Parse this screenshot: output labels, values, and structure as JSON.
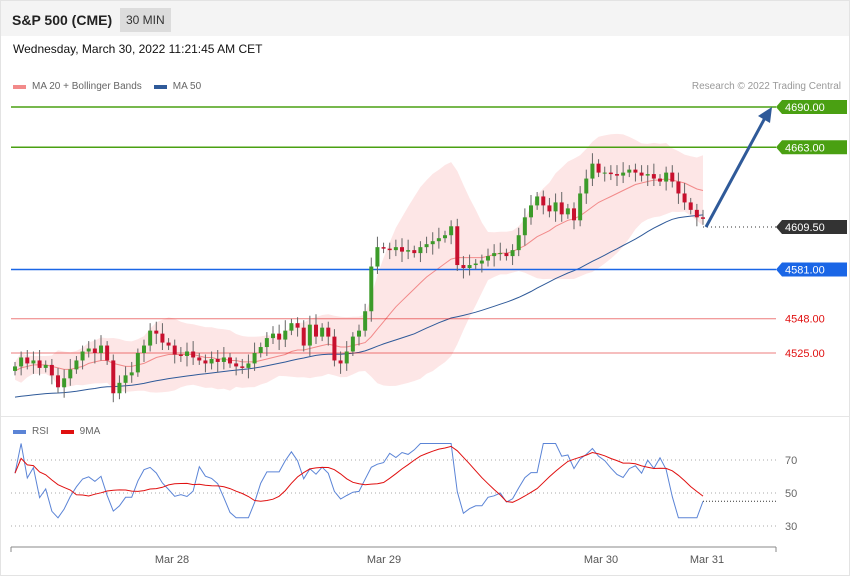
{
  "header": {
    "symbol": "S&P 500 (CME)",
    "timeframe": "30 MIN"
  },
  "datetime": "Wednesday, March 30, 2022 11:21:45 AM CET",
  "legend": {
    "ma20_label": "MA 20 + Bollinger Bands",
    "ma20_color": "#f28a8a",
    "ma50_label": "MA 50",
    "ma50_color": "#2f5a99"
  },
  "credit": "Research © 2022 Trading Central",
  "rsi_legend": {
    "rsi_label": "RSI",
    "rsi_color": "#5b84d6",
    "ma_label": "9MA",
    "ma_color": "#e01010"
  },
  "chart_data": {
    "type": "candlestick",
    "price_axis": {
      "min": 4400,
      "max": 4760
    },
    "levels": [
      {
        "label": "4690.00",
        "value": 4690.0,
        "color": "#4aa012",
        "kind": "resistance"
      },
      {
        "label": "4663.00",
        "value": 4663.0,
        "color": "#4aa012",
        "kind": "resistance"
      },
      {
        "label": "4609.50",
        "value": 4609.5,
        "color": "#333333",
        "kind": "current"
      },
      {
        "label": "4581.00",
        "value": 4581.0,
        "color": "#1a66e6",
        "kind": "pivot"
      },
      {
        "label": "4548.00",
        "value": 4548.0,
        "color": "#e01010",
        "kind": "support"
      },
      {
        "label": "4525.00",
        "value": 4525.0,
        "color": "#e01010",
        "kind": "support"
      }
    ],
    "x_labels": [
      "Mar 28",
      "Mar 29",
      "Mar 30",
      "Mar 31"
    ],
    "candles_close": [
      4516,
      4522,
      4518,
      4520,
      4515,
      4517,
      4510,
      4502,
      4508,
      4514,
      4520,
      4526,
      4528,
      4525,
      4530,
      4520,
      4498,
      4505,
      4510,
      4512,
      4525,
      4530,
      4540,
      4538,
      4532,
      4530,
      4524,
      4523,
      4526,
      4522,
      4520,
      4518,
      4521,
      4519,
      4522,
      4518,
      4516,
      4515,
      4518,
      4525,
      4529,
      4535,
      4538,
      4534,
      4540,
      4545,
      4542,
      4530,
      4544,
      4536,
      4542,
      4536,
      4520,
      4518,
      4526,
      4536,
      4540,
      4553,
      4583,
      4596,
      4595,
      4594,
      4596,
      4593,
      4594,
      4592,
      4596,
      4598,
      4600,
      4602,
      4604,
      4610,
      4584,
      4582,
      4584,
      4585,
      4587,
      4590,
      4592,
      4592,
      4590,
      4594,
      4604,
      4616,
      4624,
      4630,
      4624,
      4620,
      4626,
      4618,
      4622,
      4614,
      4632,
      4642,
      4652,
      4646,
      4646,
      4645,
      4644,
      4646,
      4648,
      4646,
      4644,
      4645,
      4642,
      4640,
      4646,
      4640,
      4632,
      4626,
      4621,
      4616,
      4615
    ],
    "ma20": [
      4513,
      4515,
      4516,
      4517,
      4517,
      4517,
      4516,
      4515,
      4514,
      4514,
      4515,
      4516,
      4518,
      4519,
      4520,
      4520,
      4518,
      4517,
      4516,
      4516,
      4517,
      4518,
      4520,
      4522,
      4523,
      4524,
      4524,
      4524,
      4524,
      4524,
      4523,
      4522,
      4522,
      4521,
      4521,
      4520,
      4520,
      4519,
      4519,
      4519,
      4520,
      4521,
      4522,
      4523,
      4524,
      4526,
      4527,
      4527,
      4528,
      4529,
      4530,
      4531,
      4530,
      4529,
      4529,
      4530,
      4531,
      4532,
      4536,
      4541,
      4546,
      4551,
      4556,
      4560,
      4564,
      4568,
      4572,
      4576,
      4579,
      4582,
      4585,
      4588,
      4589,
      4589,
      4589,
      4589,
      4589,
      4590,
      4591,
      4592,
      4592,
      4593,
      4595,
      4597,
      4600,
      4603,
      4605,
      4607,
      4610,
      4612,
      4614,
      4615,
      4617,
      4620,
      4623,
      4626,
      4628,
      4630,
      4632,
      4634,
      4636,
      4638,
      4639,
      4640,
      4641,
      4641,
      4642,
      4641,
      4640,
      4639,
      4637,
      4635,
      4634
    ],
    "rsi_axis": {
      "ticks": [
        70,
        50,
        30
      ]
    },
    "rsi_current": 45
  }
}
